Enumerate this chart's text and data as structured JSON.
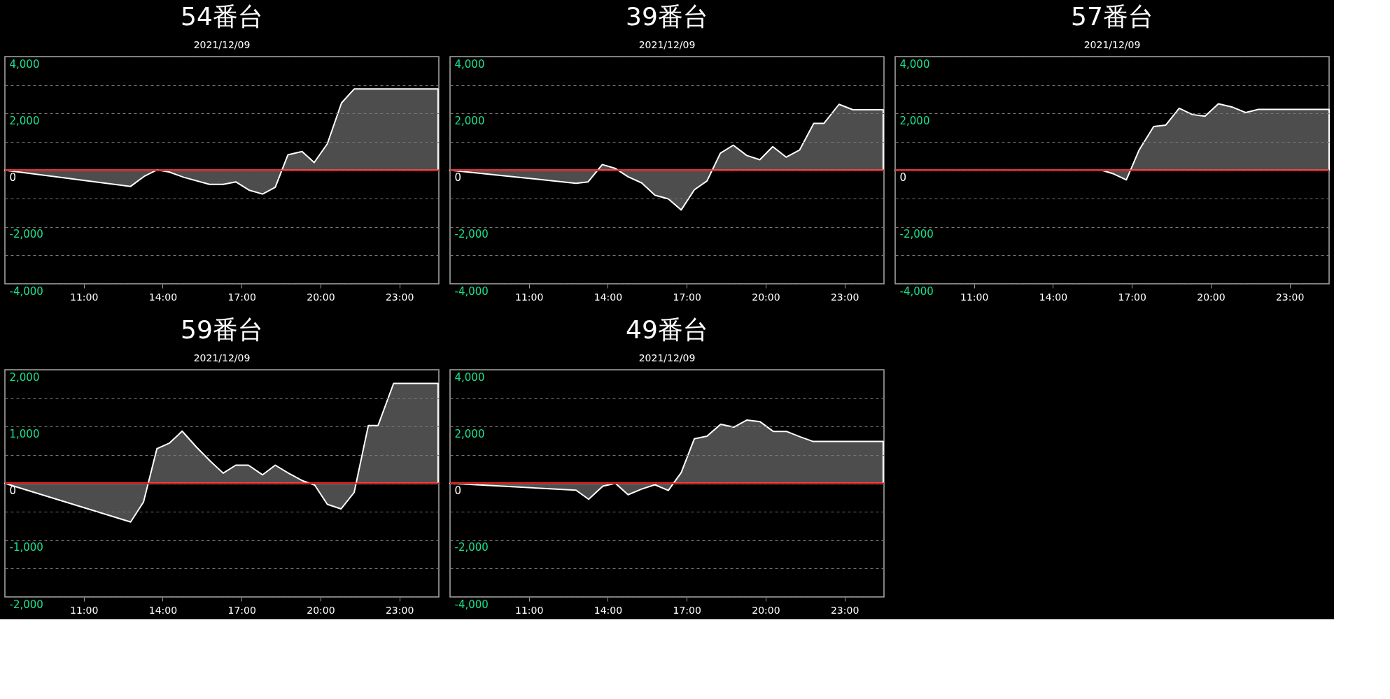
{
  "chart_data": [
    {
      "type": "area",
      "title": "54番台",
      "subtitle": "2021/12/09",
      "grid": "y",
      "x": [
        8.0,
        12.78,
        13.29,
        13.78,
        14.24,
        14.8,
        15.78,
        16.3,
        16.78,
        17.28,
        17.8,
        18.28,
        18.76,
        19.3,
        19.76,
        20.26,
        20.8,
        21.28,
        24.47
      ],
      "series": [
        {
          "color": "#ffffff",
          "values": [
            0,
            -570,
            -220,
            10,
            -60,
            -250,
            -500,
            -500,
            -410,
            -700,
            -840,
            -600,
            540,
            660,
            270,
            930,
            2370,
            2860,
            2860
          ]
        }
      ],
      "xlim": [
        8,
        24.5
      ],
      "xticks": [
        {
          "value": 11,
          "label": "11:00"
        },
        {
          "value": 14,
          "label": "14:00"
        },
        {
          "value": 17,
          "label": "17:00"
        },
        {
          "value": 20,
          "label": "20:00"
        },
        {
          "value": 23,
          "label": "23:00"
        }
      ],
      "ylim": [
        -4000,
        4000
      ],
      "yticks": [
        {
          "value": 4000,
          "label": "4,000"
        },
        {
          "value": 3000,
          "label": null
        },
        {
          "value": 2000,
          "label": "2,000"
        },
        {
          "value": 1000,
          "label": null
        },
        0,
        {
          "value": -1000,
          "label": null
        },
        {
          "value": -2000,
          "label": "-2,000"
        },
        {
          "value": -3000,
          "label": null
        },
        {
          "value": -4000,
          "label": "-4,000"
        }
      ],
      "ref_lines": [
        {
          "axis": "y",
          "value": 0,
          "color": "#ff0000"
        }
      ]
    },
    {
      "type": "area",
      "title": "39番台",
      "subtitle": "2021/12/09",
      "grid": "y",
      "x": [
        8.0,
        12.79,
        13.25,
        13.79,
        14.29,
        14.77,
        15.29,
        15.79,
        16.3,
        16.79,
        17.29,
        17.77,
        18.28,
        18.77,
        19.28,
        19.78,
        20.27,
        20.78,
        21.29,
        21.83,
        22.22,
        22.79,
        23.32,
        24.47
      ],
      "series": [
        {
          "color": "#ffffff",
          "values": [
            0,
            -460,
            -410,
            200,
            60,
            -230,
            -450,
            -880,
            -1010,
            -1400,
            -690,
            -380,
            600,
            880,
            520,
            370,
            830,
            460,
            710,
            1650,
            1650,
            2320,
            2130,
            2130
          ]
        }
      ],
      "xlim": [
        8,
        24.5
      ],
      "xticks": [
        {
          "value": 11,
          "label": "11:00"
        },
        {
          "value": 14,
          "label": "14:00"
        },
        {
          "value": 17,
          "label": "17:00"
        },
        {
          "value": 20,
          "label": "20:00"
        },
        {
          "value": 23,
          "label": "23:00"
        }
      ],
      "ylim": [
        -4000,
        4000
      ],
      "yticks": [
        {
          "value": 4000,
          "label": "4,000"
        },
        {
          "value": 3000,
          "label": null
        },
        {
          "value": 2000,
          "label": "2,000"
        },
        {
          "value": 1000,
          "label": null
        },
        0,
        {
          "value": -1000,
          "label": null
        },
        {
          "value": -2000,
          "label": "-2,000"
        },
        {
          "value": -3000,
          "label": null
        },
        {
          "value": -4000,
          "label": "-4,000"
        }
      ],
      "ref_lines": [
        {
          "axis": "y",
          "value": 0,
          "color": "#ff0000"
        }
      ]
    },
    {
      "type": "area",
      "title": "57番台",
      "subtitle": "2021/12/09",
      "grid": "y",
      "x": [
        8.0,
        15.85,
        16.31,
        16.79,
        17.27,
        17.83,
        18.29,
        18.8,
        19.3,
        19.78,
        20.29,
        20.8,
        21.33,
        21.81,
        24.5
      ],
      "series": [
        {
          "color": "#ffffff",
          "values": [
            0,
            0,
            -130,
            -340,
            700,
            1540,
            1590,
            2180,
            1960,
            1900,
            2340,
            2230,
            2030,
            2140,
            2140
          ]
        }
      ],
      "xlim": [
        8,
        24.5
      ],
      "xticks": [
        {
          "value": 11,
          "label": "11:00"
        },
        {
          "value": 14,
          "label": "14:00"
        },
        {
          "value": 17,
          "label": "17:00"
        },
        {
          "value": 20,
          "label": "20:00"
        },
        {
          "value": 23,
          "label": "23:00"
        }
      ],
      "ylim": [
        -4000,
        4000
      ],
      "yticks": [
        {
          "value": 4000,
          "label": "4,000"
        },
        {
          "value": 3000,
          "label": null
        },
        {
          "value": 2000,
          "label": "2,000"
        },
        {
          "value": 1000,
          "label": null
        },
        0,
        {
          "value": -1000,
          "label": null
        },
        {
          "value": -2000,
          "label": "-2,000"
        },
        {
          "value": -3000,
          "label": null
        },
        {
          "value": -4000,
          "label": "-4,000"
        }
      ],
      "ref_lines": [
        {
          "axis": "y",
          "value": 0,
          "color": "#ff0000"
        }
      ]
    },
    {
      "type": "area",
      "title": "59番台",
      "subtitle": "2021/12/09",
      "grid": "y",
      "x": [
        8.0,
        12.78,
        13.27,
        13.78,
        14.26,
        14.74,
        15.28,
        15.81,
        16.3,
        16.78,
        17.26,
        17.8,
        18.28,
        18.78,
        19.3,
        19.78,
        20.26,
        20.78,
        21.28,
        21.82,
        22.19,
        22.78,
        24.47
      ],
      "series": [
        {
          "color": "#ffffff",
          "values": [
            0,
            -680,
            -330,
            610,
            710,
            920,
            640,
            390,
            180,
            320,
            320,
            150,
            320,
            180,
            50,
            -30,
            -370,
            -450,
            -160,
            1020,
            1020,
            1760,
            1760
          ]
        }
      ],
      "xlim": [
        8,
        24.5
      ],
      "xticks": [
        {
          "value": 11,
          "label": "11:00"
        },
        {
          "value": 14,
          "label": "14:00"
        },
        {
          "value": 17,
          "label": "17:00"
        },
        {
          "value": 20,
          "label": "20:00"
        },
        {
          "value": 23,
          "label": "23:00"
        }
      ],
      "ylim": [
        -2000,
        2000
      ],
      "yticks": [
        {
          "value": 2000,
          "label": "2,000"
        },
        {
          "value": 1500,
          "label": null
        },
        {
          "value": 1000,
          "label": "1,000"
        },
        {
          "value": 500,
          "label": null
        },
        0,
        {
          "value": -500,
          "label": null
        },
        {
          "value": -1000,
          "label": "-1,000"
        },
        {
          "value": -1500,
          "label": null
        },
        {
          "value": -2000,
          "label": "-2,000"
        }
      ],
      "ref_lines": [
        {
          "axis": "y",
          "value": 0,
          "color": "#ff0000"
        }
      ]
    },
    {
      "type": "area",
      "title": "49番台",
      "subtitle": "2021/12/09",
      "grid": "y",
      "x": [
        8.0,
        12.79,
        13.27,
        13.81,
        14.29,
        14.77,
        15.29,
        15.79,
        16.3,
        16.79,
        17.29,
        17.77,
        18.29,
        18.79,
        19.29,
        19.79,
        20.29,
        20.79,
        21.31,
        21.79,
        24.47
      ],
      "series": [
        {
          "color": "#ffffff",
          "values": [
            0,
            -240,
            -560,
            -100,
            0,
            -400,
            -200,
            -50,
            -250,
            380,
            1570,
            1660,
            2080,
            1980,
            2230,
            2170,
            1830,
            1830,
            1640,
            1480,
            1480
          ]
        }
      ],
      "xlim": [
        8,
        24.5
      ],
      "xticks": [
        {
          "value": 11,
          "label": "11:00"
        },
        {
          "value": 14,
          "label": "14:00"
        },
        {
          "value": 17,
          "label": "17:00"
        },
        {
          "value": 20,
          "label": "20:00"
        },
        {
          "value": 23,
          "label": "23:00"
        }
      ],
      "ylim": [
        -4000,
        4000
      ],
      "yticks": [
        {
          "value": 4000,
          "label": "4,000"
        },
        {
          "value": 3000,
          "label": null
        },
        {
          "value": 2000,
          "label": "2,000"
        },
        {
          "value": 1000,
          "label": null
        },
        0,
        {
          "value": -1000,
          "label": null
        },
        {
          "value": -2000,
          "label": "-2,000"
        },
        {
          "value": -3000,
          "label": null
        },
        {
          "value": -4000,
          "label": "-4,000"
        }
      ],
      "ref_lines": [
        {
          "axis": "y",
          "value": 0,
          "color": "#ff0000"
        }
      ]
    }
  ]
}
